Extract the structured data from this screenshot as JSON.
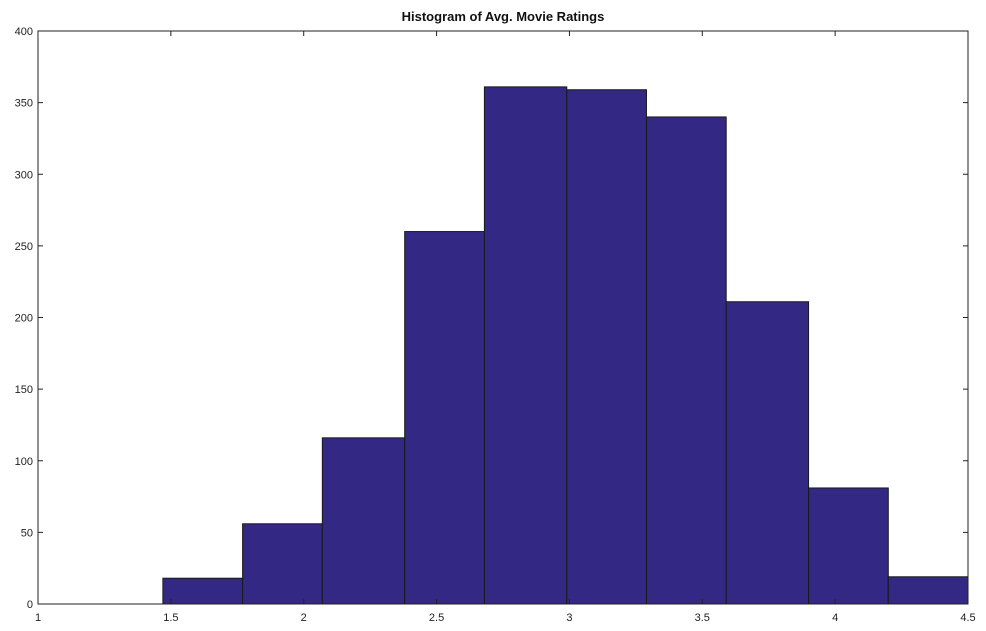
{
  "chart_data": {
    "type": "bar",
    "title": "Histogram of Avg. Movie Ratings",
    "xlabel": "",
    "ylabel": "",
    "xlim": [
      1,
      4.5
    ],
    "ylim": [
      0,
      400
    ],
    "grid": false,
    "bins": [
      {
        "x0": 1.47,
        "x1": 1.77,
        "count": 18
      },
      {
        "x0": 1.77,
        "x1": 2.07,
        "count": 56
      },
      {
        "x0": 2.07,
        "x1": 2.38,
        "count": 116
      },
      {
        "x0": 2.38,
        "x1": 2.68,
        "count": 260
      },
      {
        "x0": 2.68,
        "x1": 2.99,
        "count": 361
      },
      {
        "x0": 2.99,
        "x1": 3.29,
        "count": 359
      },
      {
        "x0": 3.29,
        "x1": 3.59,
        "count": 340
      },
      {
        "x0": 3.59,
        "x1": 3.9,
        "count": 211
      },
      {
        "x0": 3.9,
        "x1": 4.2,
        "count": 81
      },
      {
        "x0": 4.2,
        "x1": 4.5,
        "count": 19
      }
    ],
    "x_ticks": [
      {
        "value": 1,
        "label": "1"
      },
      {
        "value": 1.5,
        "label": "1.5"
      },
      {
        "value": 2,
        "label": "2"
      },
      {
        "value": 2.5,
        "label": "2.5"
      },
      {
        "value": 3,
        "label": "3"
      },
      {
        "value": 3.5,
        "label": "3.5"
      },
      {
        "value": 4,
        "label": "4"
      },
      {
        "value": 4.5,
        "label": "4.5"
      }
    ],
    "y_ticks": [
      {
        "value": 0,
        "label": "0"
      },
      {
        "value": 50,
        "label": "50"
      },
      {
        "value": 100,
        "label": "100"
      },
      {
        "value": 150,
        "label": "150"
      },
      {
        "value": 200,
        "label": "200"
      },
      {
        "value": 250,
        "label": "250"
      },
      {
        "value": 300,
        "label": "300"
      },
      {
        "value": 350,
        "label": "350"
      },
      {
        "value": 400,
        "label": "400"
      }
    ],
    "bar_color": "#332884",
    "edge_color": "#1a1a1a"
  }
}
